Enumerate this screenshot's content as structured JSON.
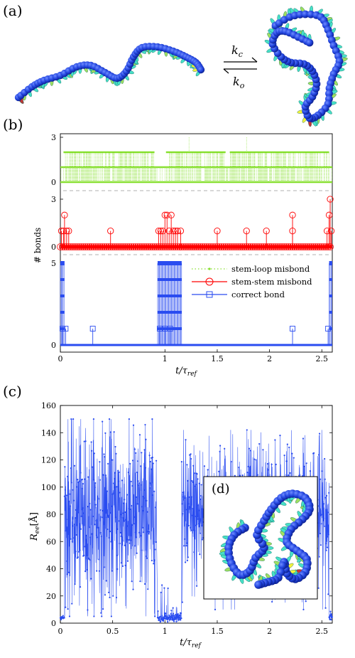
{
  "panels": {
    "a": {
      "label": "(a)"
    },
    "b": {
      "label": "(b)"
    },
    "c": {
      "label": "(c)"
    },
    "d": {
      "label": "(d)"
    }
  },
  "reaction": {
    "k_close": "k",
    "k_close_sub": "c",
    "k_open": "k",
    "k_open_sub": "o"
  },
  "colors": {
    "backbone": "#1a3fd6",
    "bead": "#2346e0",
    "base_cyan": "#46e0c8",
    "base_green": "#9fe060",
    "base_yellow": "#f2f23a",
    "base_red": "#c83232",
    "stem_loop": "#88e030",
    "stem_stem": "#ff0000",
    "correct": "#2a4cf0"
  },
  "chart_data": [
    {
      "type": "scatter",
      "panel": "b",
      "ylabel": "# bonds",
      "xlabel": "t/τ_ref",
      "xlabel_main": "t/τ",
      "xlabel_sub": "ref",
      "xlim": [
        0,
        2.6
      ],
      "xticks": [
        "0",
        "1",
        "1.5",
        "2",
        "2.5"
      ],
      "xtick_values": [
        0,
        1,
        1.5,
        2,
        2.5
      ],
      "legend": {
        "placement": "right",
        "entries": [
          "stem-loop misbond",
          "stem-stem misbond",
          "correct bond"
        ]
      },
      "subplots": [
        {
          "name": "stem-loop misbond",
          "yticks": [
            "0",
            "3"
          ],
          "ytick_values": [
            0,
            3
          ],
          "ylim": [
            0,
            3
          ],
          "baseline": 0,
          "levels": [
            1,
            2
          ],
          "level2_ranges": [
            [
              0.03,
              0.9
            ],
            [
              1.01,
              1.58
            ],
            [
              1.62,
              2.57
            ]
          ],
          "level1_ranges": [
            [
              0.0,
              2.6
            ]
          ],
          "spikes": [
            {
              "x": 1.23,
              "y": 3
            },
            {
              "x": 1.78,
              "y": 3
            }
          ]
        },
        {
          "name": "stem-stem misbond",
          "yticks": [
            "0",
            "3"
          ],
          "ytick_values": [
            0,
            3
          ],
          "ylim": [
            0,
            3
          ],
          "baseline": 0,
          "events": [
            {
              "x": 0.01,
              "y": 1
            },
            {
              "x": 0.03,
              "y": 1
            },
            {
              "x": 0.04,
              "y": 2
            },
            {
              "x": 0.06,
              "y": 1
            },
            {
              "x": 0.08,
              "y": 1
            },
            {
              "x": 0.48,
              "y": 1
            },
            {
              "x": 0.94,
              "y": 1
            },
            {
              "x": 0.96,
              "y": 1
            },
            {
              "x": 0.98,
              "y": 1
            },
            {
              "x": 1.0,
              "y": 2
            },
            {
              "x": 1.02,
              "y": 2
            },
            {
              "x": 1.04,
              "y": 1
            },
            {
              "x": 1.06,
              "y": 2
            },
            {
              "x": 1.08,
              "y": 1
            },
            {
              "x": 1.1,
              "y": 1
            },
            {
              "x": 1.12,
              "y": 1
            },
            {
              "x": 1.15,
              "y": 1
            },
            {
              "x": 1.5,
              "y": 1
            },
            {
              "x": 1.78,
              "y": 1
            },
            {
              "x": 1.97,
              "y": 1
            },
            {
              "x": 2.22,
              "y": 2
            },
            {
              "x": 2.22,
              "y": 1
            },
            {
              "x": 2.55,
              "y": 1
            },
            {
              "x": 2.57,
              "y": 2
            },
            {
              "x": 2.58,
              "y": 3
            },
            {
              "x": 2.59,
              "y": 1
            }
          ]
        },
        {
          "name": "correct bond",
          "yticks": [
            "0",
            "5"
          ],
          "ytick_values": [
            0,
            5
          ],
          "ylim": [
            0,
            5
          ],
          "baseline": 0,
          "folded_ranges": [
            [
              0.0,
              0.04
            ],
            [
              0.93,
              1.16
            ],
            [
              2.57,
              2.6
            ]
          ],
          "folded_level": 5,
          "intermediate_levels": [
            1,
            2,
            3,
            4
          ],
          "events": [
            {
              "x": 0.31,
              "y": 1
            },
            {
              "x": 2.22,
              "y": 1
            },
            {
              "x": 0.02,
              "y": 1
            },
            {
              "x": 0.05,
              "y": 1
            },
            {
              "x": 0.95,
              "y": 1
            },
            {
              "x": 1.0,
              "y": 1
            },
            {
              "x": 1.05,
              "y": 1
            },
            {
              "x": 2.56,
              "y": 1
            }
          ]
        }
      ]
    },
    {
      "type": "line",
      "panel": "c",
      "ylabel": "R_ee [Å]",
      "ylabel_main": "R",
      "ylabel_sub": "ee",
      "ylabel_unit": "[Å]",
      "xlabel": "t/τ_ref",
      "xlabel_main": "t/τ",
      "xlabel_sub": "ref",
      "xlim": [
        0,
        2.6
      ],
      "ylim": [
        0,
        160
      ],
      "xticks": [
        "0",
        "0.5",
        "1",
        "1.5",
        "2",
        "2.5"
      ],
      "xtick_values": [
        0,
        0.5,
        1,
        1.5,
        2,
        2.5
      ],
      "yticks": [
        "0",
        "20",
        "40",
        "60",
        "80",
        "100",
        "120",
        "140",
        "160"
      ],
      "ytick_values": [
        0,
        20,
        40,
        60,
        80,
        100,
        120,
        140,
        160
      ],
      "series": [
        {
          "segments": [
            {
              "x_range": [
                0.0,
                0.04
              ],
              "mean": 4,
              "spread": 1
            },
            {
              "x_range": [
                0.04,
                0.92
              ],
              "mean": 78,
              "spread": 32,
              "min": 5,
              "max": 150
            },
            {
              "x_range": [
                0.93,
                1.16
              ],
              "mean": 4,
              "spread": 2,
              "max": 35
            },
            {
              "x_range": [
                1.16,
                2.57
              ],
              "mean": 78,
              "spread": 28,
              "min": 10,
              "max": 142
            },
            {
              "x_range": [
                2.57,
                2.6
              ],
              "mean": 5,
              "spread": 2
            }
          ]
        }
      ]
    }
  ]
}
